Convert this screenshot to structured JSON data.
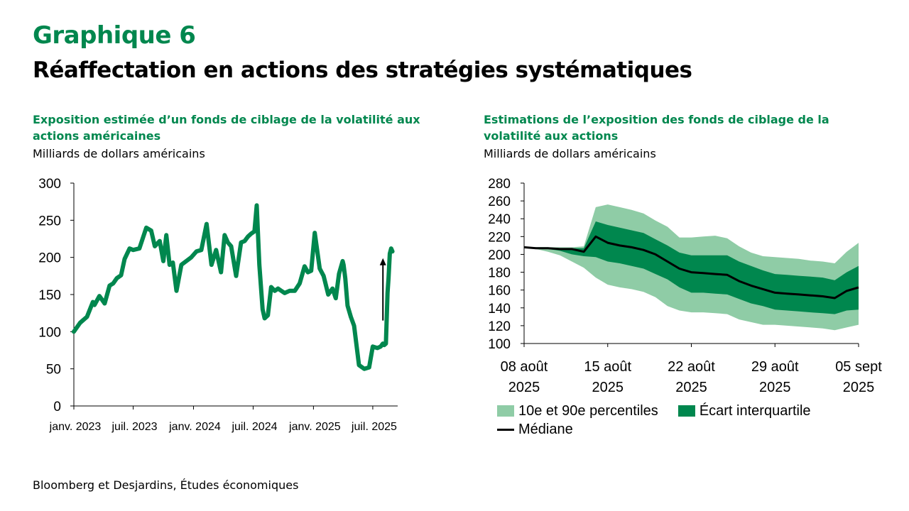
{
  "title": "Graphique 6",
  "subtitle": "Réaffectation en actions des stratégies systématiques",
  "source": "Bloomberg et Desjardins, Études économiques",
  "colors": {
    "title_green": "#00874E",
    "line_green": "#00874E",
    "band_outer": "#8FCCA6",
    "band_inner": "#00874E",
    "median": "#000000"
  },
  "chart_data": [
    {
      "type": "line",
      "title": "Exposition estimée d’un fonds de ciblage de la volatilité aux actions américaines",
      "ylabel": "Milliards de dollars américains",
      "ylim": [
        0,
        300
      ],
      "yticks": [
        "0",
        "50",
        "100",
        "150",
        "200",
        "250",
        "300"
      ],
      "xlim": [
        "2023-01-01",
        "2025-09-15"
      ],
      "xtick_labels": [
        "janv. 2023",
        "juil. 2023",
        "janv. 2024",
        "juil. 2024",
        "janv. 2025",
        "juil. 2025"
      ],
      "xtick_dates": [
        "2023-01-01",
        "2023-07-01",
        "2024-01-01",
        "2024-07-01",
        "2025-01-01",
        "2025-07-01"
      ],
      "annotation": "arrow-up",
      "annotation_from": [
        "2025-08-01",
        115
      ],
      "annotation_to": [
        "2025-08-01",
        197
      ],
      "series": [
        {
          "dates": [
            "2023-01-01",
            "2023-01-20",
            "2023-02-10",
            "2023-02-28",
            "2023-03-05",
            "2023-03-20",
            "2023-04-05",
            "2023-04-20",
            "2023-05-01",
            "2023-05-12",
            "2023-05-25",
            "2023-06-05",
            "2023-06-20",
            "2023-07-01",
            "2023-07-20",
            "2023-08-10",
            "2023-08-25",
            "2023-09-05",
            "2023-09-20",
            "2023-10-01",
            "2023-10-10",
            "2023-10-20",
            "2023-10-30",
            "2023-11-10",
            "2023-11-25",
            "2023-12-10",
            "2023-12-25",
            "2024-01-10",
            "2024-01-25",
            "2024-02-10",
            "2024-02-25",
            "2024-03-10",
            "2024-03-25",
            "2024-04-05",
            "2024-04-15",
            "2024-04-25",
            "2024-05-10",
            "2024-05-25",
            "2024-06-05",
            "2024-06-15",
            "2024-06-25",
            "2024-07-05",
            "2024-07-12",
            "2024-07-20",
            "2024-07-30",
            "2024-08-05",
            "2024-08-15",
            "2024-08-25",
            "2024-09-05",
            "2024-09-15",
            "2024-09-25",
            "2024-10-05",
            "2024-10-20",
            "2024-11-05",
            "2024-11-20",
            "2024-12-05",
            "2024-12-15",
            "2024-12-25",
            "2025-01-05",
            "2025-01-20",
            "2025-02-01",
            "2025-02-15",
            "2025-02-28",
            "2025-03-10",
            "2025-03-20",
            "2025-03-31",
            "2025-04-03",
            "2025-04-08",
            "2025-04-15",
            "2025-04-25",
            "2025-05-05",
            "2025-05-20",
            "2025-06-05",
            "2025-06-20",
            "2025-07-01",
            "2025-07-15",
            "2025-07-25",
            "2025-08-01",
            "2025-08-05",
            "2025-08-10",
            "2025-08-15",
            "2025-08-18",
            "2025-08-22",
            "2025-08-26",
            "2025-08-30"
          ],
          "values": [
            100,
            112,
            120,
            140,
            136,
            148,
            138,
            162,
            165,
            172,
            176,
            198,
            212,
            210,
            212,
            240,
            236,
            215,
            222,
            195,
            230,
            190,
            193,
            155,
            190,
            195,
            200,
            208,
            210,
            245,
            190,
            210,
            180,
            230,
            220,
            215,
            175,
            220,
            222,
            228,
            232,
            235,
            270,
            190,
            130,
            118,
            122,
            160,
            155,
            158,
            155,
            152,
            155,
            155,
            165,
            188,
            180,
            182,
            233,
            185,
            175,
            150,
            158,
            145,
            178,
            195,
            190,
            172,
            135,
            120,
            108,
            55,
            50,
            52,
            80,
            78,
            80,
            84,
            82,
            84,
            152,
            172,
            205,
            212,
            208
          ]
        }
      ]
    },
    {
      "type": "area",
      "title": "Estimations de l’exposition des fonds de ciblage de la volatilité aux actions",
      "ylabel": "Milliards de dollars américains",
      "ylim": [
        100,
        280
      ],
      "yticks": [
        "100",
        "120",
        "140",
        "160",
        "180",
        "200",
        "220",
        "240",
        "260",
        "280"
      ],
      "xtick_labels": [
        [
          "08 août",
          "2025"
        ],
        [
          "15 août",
          "2025"
        ],
        [
          "22 août",
          "2025"
        ],
        [
          "29 août",
          "2025"
        ],
        [
          "05 sept",
          "2025"
        ]
      ],
      "xtick_days": [
        0,
        7,
        14,
        21,
        28
      ],
      "legend_position": "bottom",
      "x_days": [
        0,
        1,
        2,
        3,
        4,
        5,
        6,
        7,
        8,
        9,
        10,
        11,
        12,
        13,
        14,
        15,
        16,
        17,
        18,
        19,
        20,
        21,
        22,
        23,
        24,
        25,
        26,
        27,
        28
      ],
      "series": [
        {
          "name": "10e et 90e percentiles",
          "low": [
            208,
            206,
            203,
            199,
            192,
            185,
            174,
            166,
            163,
            161,
            158,
            152,
            142,
            137,
            135,
            135,
            134,
            133,
            127,
            124,
            121,
            121,
            120,
            119,
            118,
            117,
            115,
            118,
            121
          ],
          "high": [
            208,
            208,
            208,
            208,
            208,
            209,
            253,
            256,
            253,
            250,
            246,
            238,
            231,
            219,
            219,
            220,
            221,
            218,
            209,
            202,
            198,
            197,
            196,
            195,
            193,
            192,
            190,
            203,
            213
          ]
        },
        {
          "name": "Écart interquartile",
          "low": [
            208,
            207,
            206,
            204,
            200,
            198,
            197,
            192,
            190,
            187,
            184,
            178,
            172,
            163,
            157,
            157,
            156,
            155,
            150,
            145,
            142,
            138,
            137,
            136,
            135,
            134,
            133,
            137,
            138
          ],
          "high": [
            208,
            208,
            208,
            207,
            207,
            207,
            237,
            233,
            230,
            227,
            224,
            217,
            210,
            202,
            199,
            199,
            199,
            199,
            192,
            187,
            182,
            178,
            177,
            176,
            175,
            174,
            171,
            180,
            187
          ]
        },
        {
          "name": "Médiane",
          "values": [
            208,
            207,
            207,
            206,
            206,
            203,
            220,
            213,
            210,
            208,
            205,
            200,
            192,
            184,
            180,
            179,
            178,
            177,
            170,
            165,
            161,
            157,
            156,
            155,
            154,
            153,
            151,
            159,
            163
          ]
        }
      ]
    }
  ]
}
